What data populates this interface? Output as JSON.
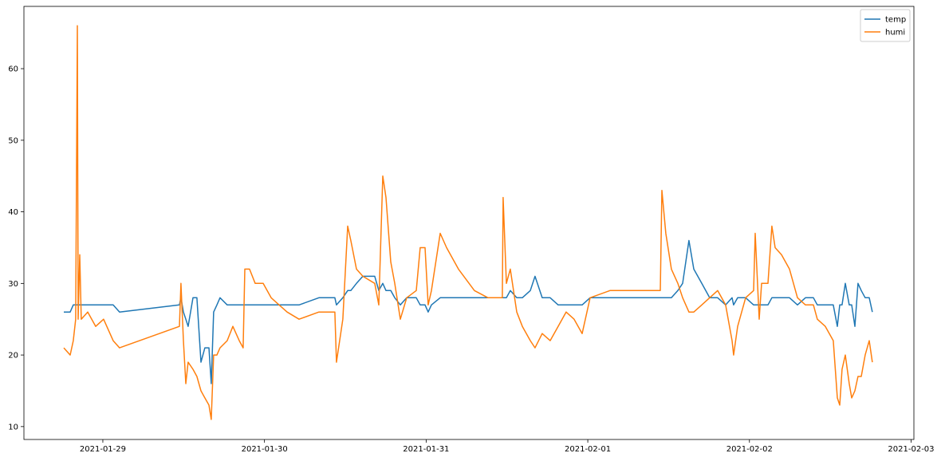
{
  "chart_data": {
    "type": "line",
    "x": [
      "2021-01-28T18:12",
      "2021-01-28T19:09",
      "2021-01-28T19:37",
      "2021-01-28T19:58",
      "2021-01-28T20:13",
      "2021-01-28T20:20",
      "2021-01-28T20:34",
      "2021-01-28T20:48",
      "2021-01-28T21:45",
      "2021-01-28T22:56",
      "2021-01-29T00:07",
      "2021-01-29T01:32",
      "2021-01-29T02:29",
      "2021-01-29T11:22",
      "2021-01-29T11:36",
      "2021-01-29T11:58",
      "2021-01-29T12:19",
      "2021-01-29T12:40",
      "2021-01-29T13:23",
      "2021-01-29T13:58",
      "2021-01-29T14:34",
      "2021-01-29T15:09",
      "2021-01-29T15:45",
      "2021-01-29T16:06",
      "2021-01-29T16:27",
      "2021-01-29T16:56",
      "2021-01-29T17:24",
      "2021-01-29T18:28",
      "2021-01-29T19:18",
      "2021-01-29T20:15",
      "2021-01-29T20:50",
      "2021-01-29T21:05",
      "2021-01-29T21:47",
      "2021-01-29T22:37",
      "2021-01-29T23:48",
      "2021-01-30T00:59",
      "2021-01-30T02:10",
      "2021-01-30T03:21",
      "2021-01-30T05:08",
      "2021-01-30T08:05",
      "2021-01-30T10:27",
      "2021-01-30T10:41",
      "2021-01-30T11:38",
      "2021-01-30T12:21",
      "2021-01-30T12:49",
      "2021-01-30T13:39",
      "2021-01-30T14:36",
      "2021-01-30T16:22",
      "2021-01-30T16:58",
      "2021-01-30T17:34",
      "2021-01-30T18:02",
      "2021-01-30T18:45",
      "2021-01-30T19:20",
      "2021-01-30T20:10",
      "2021-01-30T21:07",
      "2021-01-30T22:32",
      "2021-01-30T23:07",
      "2021-01-30T23:50",
      "2021-01-31T00:18",
      "2021-01-31T00:47",
      "2021-01-31T02:05",
      "2021-01-31T03:02",
      "2021-01-31T04:48",
      "2021-01-31T07:10",
      "2021-01-31T09:11",
      "2021-01-31T11:19",
      "2021-01-31T11:26",
      "2021-01-31T11:55",
      "2021-01-31T12:30",
      "2021-01-31T13:27",
      "2021-01-31T14:17",
      "2021-01-31T15:28",
      "2021-01-31T16:10",
      "2021-01-31T17:14",
      "2021-01-31T18:25",
      "2021-01-31T19:36",
      "2021-01-31T20:47",
      "2021-01-31T21:58",
      "2021-01-31T23:10",
      "2021-02-01T00:21",
      "2021-02-01T03:18",
      "2021-02-01T10:46",
      "2021-02-01T11:00",
      "2021-02-01T11:35",
      "2021-02-01T12:25",
      "2021-02-01T13:22",
      "2021-02-01T14:05",
      "2021-02-01T15:01",
      "2021-02-01T15:44",
      "2021-02-01T16:55",
      "2021-02-01T18:06",
      "2021-02-01T19:17",
      "2021-02-01T20:28",
      "2021-02-01T21:25",
      "2021-02-01T21:39",
      "2021-02-01T22:15",
      "2021-02-01T23:26",
      "2021-02-02T00:37",
      "2021-02-02T00:51",
      "2021-02-02T01:27",
      "2021-02-02T01:48",
      "2021-02-02T02:45",
      "2021-02-02T03:20",
      "2021-02-02T03:49",
      "2021-02-02T04:46",
      "2021-02-02T05:57",
      "2021-02-02T07:08",
      "2021-02-02T08:19",
      "2021-02-02T09:30",
      "2021-02-02T10:05",
      "2021-02-02T11:16",
      "2021-02-02T12:27",
      "2021-02-02T13:03",
      "2021-02-02T13:24",
      "2021-02-02T13:45",
      "2021-02-02T14:14",
      "2021-02-02T14:49",
      "2021-02-02T15:11",
      "2021-02-02T15:39",
      "2021-02-02T16:07",
      "2021-02-02T16:36",
      "2021-02-02T17:11",
      "2021-02-02T17:47",
      "2021-02-02T18:15"
    ],
    "series": [
      {
        "name": "temp",
        "color": "#1f77b4",
        "values": [
          26,
          26,
          27,
          27,
          27,
          27,
          27,
          27,
          27,
          27,
          27,
          27,
          26,
          27,
          28,
          26,
          25,
          24,
          28,
          28,
          19,
          21,
          21,
          16,
          26,
          27,
          28,
          27,
          27,
          27,
          27,
          27,
          27,
          27,
          27,
          27,
          27,
          27,
          27,
          28,
          28,
          27,
          28,
          29,
          29,
          30,
          31,
          31,
          29,
          30,
          29,
          29,
          28,
          27,
          28,
          28,
          27,
          27,
          26,
          27,
          28,
          28,
          28,
          28,
          28,
          28,
          28,
          28,
          29,
          28,
          28,
          29,
          31,
          28,
          28,
          27,
          27,
          27,
          27,
          28,
          28,
          28,
          28,
          28,
          28,
          29,
          30,
          36,
          32,
          30,
          28,
          28,
          27,
          28,
          27,
          28,
          28,
          27,
          27,
          27,
          27,
          27,
          28,
          28,
          28,
          28,
          27,
          28,
          28,
          27,
          27,
          27,
          24,
          27,
          27,
          30,
          27,
          27,
          24,
          30,
          29,
          28,
          28,
          26
        ]
      },
      {
        "name": "humi",
        "color": "#ff7f0e",
        "values": [
          21,
          20,
          22,
          25,
          66,
          25,
          34,
          25,
          26,
          24,
          25,
          22,
          21,
          24,
          30,
          22,
          16,
          19,
          18,
          17,
          15,
          14,
          13,
          11,
          20,
          20,
          21,
          22,
          24,
          22,
          21,
          32,
          32,
          30,
          30,
          28,
          27,
          26,
          25,
          26,
          26,
          19,
          25,
          38,
          36,
          32,
          31,
          30,
          27,
          45,
          42,
          33,
          30,
          25,
          28,
          29,
          35,
          35,
          27,
          29,
          37,
          35,
          32,
          29,
          28,
          28,
          42,
          30,
          32,
          26,
          24,
          22,
          21,
          23,
          22,
          24,
          26,
          25,
          23,
          28,
          29,
          29,
          43,
          37,
          32,
          30,
          28,
          26,
          26,
          27,
          28,
          29,
          27,
          22,
          20,
          24,
          28,
          29,
          37,
          25,
          30,
          30,
          38,
          35,
          34,
          32,
          28,
          27,
          27,
          25,
          24,
          22,
          14,
          13,
          18,
          20,
          16,
          14,
          15,
          17,
          17,
          20,
          22,
          19
        ]
      }
    ],
    "xlim": [
      "2021-01-28T12:17",
      "2021-02-03T00:25"
    ],
    "xticks": [
      "2021-01-29",
      "2021-01-30",
      "2021-01-31",
      "2021-02-01",
      "2021-02-02",
      "2021-02-03"
    ],
    "ylim": [
      8.2,
      68.7
    ],
    "yticks": [
      10,
      20,
      30,
      40,
      50,
      60
    ],
    "legend": "upper right"
  }
}
